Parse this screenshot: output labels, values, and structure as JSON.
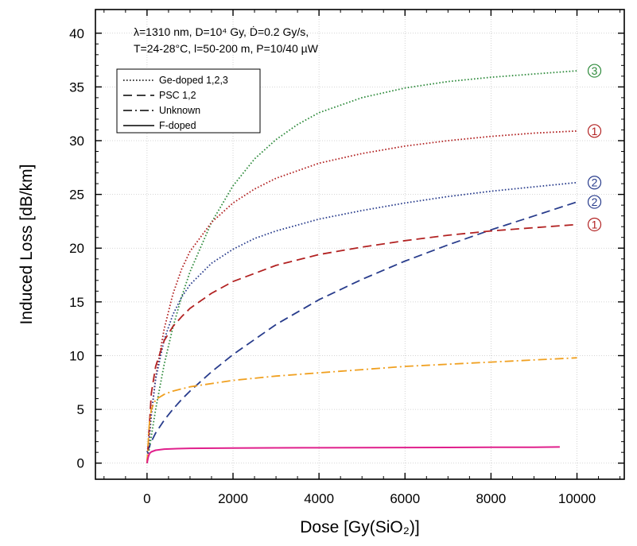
{
  "chart_data": {
    "type": "line",
    "xlabel": "Dose [Gy(SiO₂)]",
    "ylabel": "Induced Loss [dB/km]",
    "xlim": [
      -1200,
      11100
    ],
    "ylim": [
      -1.5,
      42.2
    ],
    "x_ticks": [
      0,
      2000,
      4000,
      6000,
      8000,
      10000
    ],
    "y_ticks": [
      0,
      5,
      10,
      15,
      20,
      25,
      30,
      35,
      40
    ],
    "annotation_lines": [
      "λ=1310 nm, D=10⁴ Gy, Ḋ=0.2 Gy/s,",
      "T=24-28°C, l=50-200 m, P=10/40 µW"
    ],
    "legend": {
      "placement": "top-left",
      "entries": [
        {
          "label": "Ge-doped 1,2,3",
          "dash": "dotted"
        },
        {
          "label": "PSC 1,2",
          "dash": "dashed"
        },
        {
          "label": "Unknown",
          "dash": "dashdot"
        },
        {
          "label": "F-doped",
          "dash": "solid"
        }
      ]
    },
    "series": [
      {
        "group": "Ge-doped",
        "label": "3",
        "color": "#2e8b3c",
        "dash": "dotted",
        "x": [
          0,
          100,
          200,
          400,
          600,
          800,
          1000,
          1500,
          2000,
          2500,
          3000,
          3500,
          4000,
          5000,
          6000,
          7000,
          8000,
          9000,
          10000
        ],
        "y": [
          0,
          2.5,
          5.0,
          9.2,
          12.6,
          15.4,
          17.8,
          22.4,
          25.8,
          28.3,
          30.1,
          31.5,
          32.6,
          34.0,
          34.9,
          35.5,
          35.9,
          36.2,
          36.5
        ]
      },
      {
        "group": "Ge-doped",
        "label": "1",
        "color": "#b22222",
        "dash": "dotted",
        "x": [
          0,
          100,
          200,
          400,
          600,
          800,
          1000,
          1500,
          2000,
          2500,
          3000,
          4000,
          5000,
          6000,
          7000,
          8000,
          9000,
          10000
        ],
        "y": [
          0,
          4.5,
          8.0,
          12.5,
          15.7,
          18.0,
          19.7,
          22.4,
          24.2,
          25.5,
          26.5,
          27.9,
          28.8,
          29.5,
          30.0,
          30.4,
          30.7,
          30.9
        ]
      },
      {
        "group": "Ge-doped",
        "label": "2",
        "color": "#283c8c",
        "dash": "dotted",
        "x": [
          0,
          100,
          200,
          400,
          600,
          800,
          1000,
          1500,
          2000,
          2500,
          3000,
          4000,
          5000,
          6000,
          7000,
          8000,
          9000,
          10000
        ],
        "y": [
          0,
          4.5,
          7.8,
          11.5,
          13.8,
          15.4,
          16.6,
          18.6,
          19.9,
          20.9,
          21.6,
          22.7,
          23.5,
          24.2,
          24.8,
          25.3,
          25.7,
          26.1
        ]
      },
      {
        "group": "PSC",
        "label": "2",
        "color": "#283c8c",
        "dash": "dashed",
        "x": [
          0,
          100,
          200,
          400,
          600,
          800,
          1000,
          1500,
          2000,
          3000,
          4000,
          5000,
          6000,
          7000,
          8000,
          9000,
          10000
        ],
        "y": [
          1.0,
          2.0,
          2.8,
          4.0,
          5.0,
          5.9,
          6.7,
          8.5,
          10.1,
          12.9,
          15.2,
          17.1,
          18.8,
          20.3,
          21.7,
          23.0,
          24.3
        ]
      },
      {
        "group": "PSC",
        "label": "1",
        "color": "#b22222",
        "dash": "dashed",
        "x": [
          0,
          100,
          200,
          400,
          600,
          800,
          1000,
          1500,
          2000,
          3000,
          4000,
          5000,
          6000,
          7000,
          8000,
          9000,
          10000
        ],
        "y": [
          0,
          6.5,
          9.0,
          11.4,
          12.7,
          13.6,
          14.4,
          15.8,
          16.9,
          18.4,
          19.4,
          20.1,
          20.7,
          21.2,
          21.6,
          21.9,
          22.2
        ]
      },
      {
        "group": "Unknown",
        "label": "",
        "color": "#f0a020",
        "dash": "dashdot",
        "x": [
          0,
          50,
          100,
          200,
          400,
          600,
          1000,
          1500,
          2000,
          3000,
          4000,
          5000,
          6000,
          7000,
          8000,
          9000,
          10000
        ],
        "y": [
          0,
          3.5,
          5.0,
          5.9,
          6.4,
          6.7,
          7.1,
          7.4,
          7.7,
          8.1,
          8.4,
          8.7,
          9.0,
          9.2,
          9.4,
          9.6,
          9.8
        ]
      },
      {
        "group": "F-doped",
        "label": "",
        "color": "#e0208c",
        "dash": "solid",
        "x": [
          0,
          30,
          60,
          100,
          200,
          400,
          700,
          1000,
          2000,
          3000,
          4000,
          5000,
          6000,
          7000,
          8000,
          9000,
          9600
        ],
        "y": [
          0,
          0.6,
          0.9,
          1.05,
          1.2,
          1.3,
          1.35,
          1.38,
          1.4,
          1.42,
          1.43,
          1.44,
          1.45,
          1.46,
          1.47,
          1.48,
          1.5
        ]
      }
    ]
  }
}
